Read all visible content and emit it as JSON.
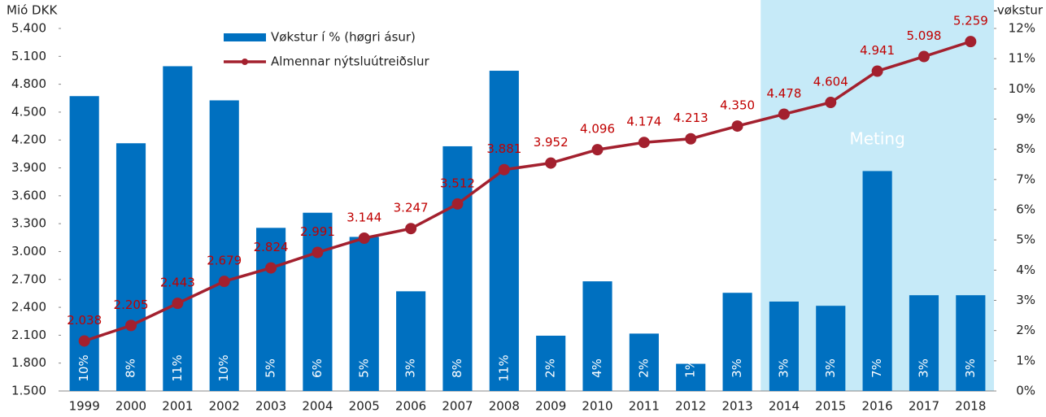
{
  "chart_data": {
    "type": "bar_line",
    "ylabel": "Mió DKK",
    "y2label": "%-vøkstur",
    "annotation": "Meting",
    "legend": "upper left",
    "categories": [
      "1999",
      "2000",
      "2001",
      "2002",
      "2003",
      "2004",
      "2005",
      "2006",
      "2007",
      "2008",
      "2009",
      "2010",
      "2011",
      "2012",
      "2013",
      "2014",
      "2015",
      "2016",
      "2017",
      "2018"
    ],
    "series": [
      {
        "name": "Vøkstur í % (høgri ásur)",
        "type": "bar",
        "axis": "y2",
        "color": "#0070c0",
        "values": [
          9.76,
          8.2,
          10.75,
          9.62,
          5.4,
          5.9,
          5.1,
          3.3,
          8.1,
          10.6,
          1.83,
          3.63,
          1.9,
          0.9,
          3.25,
          2.96,
          2.82,
          7.28,
          3.17,
          3.17
        ],
        "value_labels": [
          "10%",
          "8%",
          "11%",
          "10%",
          "5%",
          "6%",
          "5%",
          "3%",
          "8%",
          "11%",
          "2%",
          "4%",
          "2%",
          "1%",
          "3%",
          "3%",
          "3%",
          "7%",
          "3%",
          "3%"
        ]
      },
      {
        "name": "Almennar nýtsluútreiðslur",
        "type": "line",
        "axis": "y",
        "color": "#a3202e",
        "values": [
          2038,
          2205,
          2443,
          2679,
          2824,
          2991,
          3144,
          3247,
          3512,
          3881,
          3952,
          4096,
          4174,
          4213,
          4350,
          4478,
          4604,
          4941,
          5098,
          5259
        ],
        "value_labels": [
          "2.038",
          "2.205",
          "2.443",
          "2.679",
          "2.824",
          "2.991",
          "3.144",
          "3.247",
          "3.512",
          "3.881",
          "3.952",
          "4.096",
          "4.174",
          "4.213",
          "4.350",
          "4.478",
          "4.604",
          "4.941",
          "5.098",
          "5.259"
        ]
      }
    ],
    "ylim": [
      1500,
      5400
    ],
    "yticks": [
      {
        "value": 1500,
        "label": "1.500"
      },
      {
        "value": 1800,
        "label": "1.800"
      },
      {
        "value": 2100,
        "label": "2.100"
      },
      {
        "value": 2400,
        "label": "2.400"
      },
      {
        "value": 2700,
        "label": "2.700"
      },
      {
        "value": 3000,
        "label": "3.000"
      },
      {
        "value": 3300,
        "label": "3.300"
      },
      {
        "value": 3600,
        "label": "3.600"
      },
      {
        "value": 3900,
        "label": "3.900"
      },
      {
        "value": 4200,
        "label": "4.200"
      },
      {
        "value": 4500,
        "label": "4.500"
      },
      {
        "value": 4800,
        "label": "4.800"
      },
      {
        "value": 5100,
        "label": "5.100"
      },
      {
        "value": 5400,
        "label": "5.400"
      }
    ],
    "y2lim": [
      0,
      12
    ],
    "y2ticks": [
      {
        "value": 0,
        "label": "0%"
      },
      {
        "value": 1,
        "label": "1%"
      },
      {
        "value": 2,
        "label": "2%"
      },
      {
        "value": 3,
        "label": "3%"
      },
      {
        "value": 4,
        "label": "4%"
      },
      {
        "value": 5,
        "label": "5%"
      },
      {
        "value": 6,
        "label": "6%"
      },
      {
        "value": 7,
        "label": "7%"
      },
      {
        "value": 8,
        "label": "8%"
      },
      {
        "value": 9,
        "label": "9%"
      },
      {
        "value": 10,
        "label": "10%"
      },
      {
        "value": 11,
        "label": "11%"
      },
      {
        "value": 12,
        "label": "12%"
      }
    ]
  }
}
